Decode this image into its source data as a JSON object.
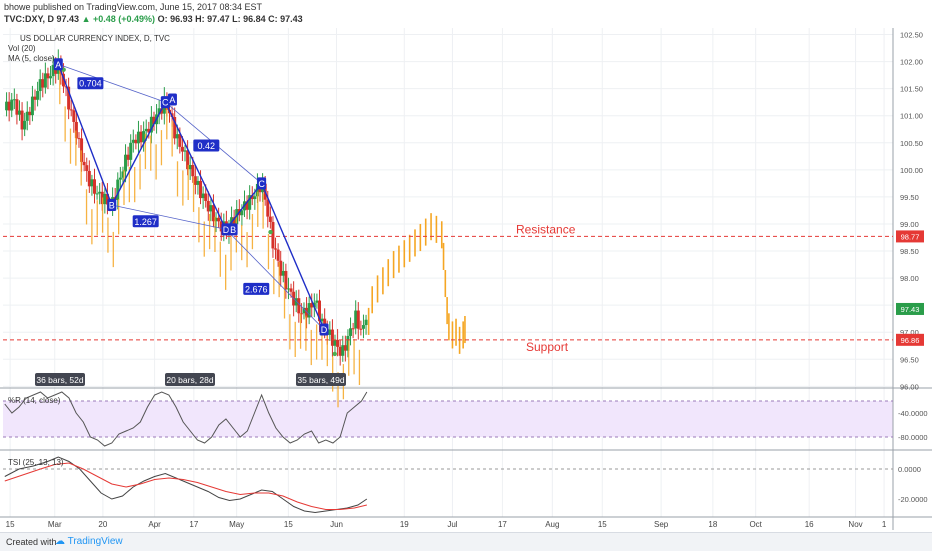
{
  "header": {
    "line1": "bhowe published on TradingView.com, June 15, 2017 08:34 EST",
    "symbol": "TVC:DXY, D",
    "price": "97.43",
    "change": "+0.48 (+0.49%)",
    "ohlc": "O: 96.93 H: 97.47 L: 96.84 C: 97.43"
  },
  "legend": {
    "title": "US DOLLAR CURRENCY INDEX, D, TVC",
    "vol": "Vol (20)",
    "ma": "MA (5, close)"
  },
  "colors": {
    "up": "#2a9d4a",
    "down": "#d6312a",
    "forecast": "#f5a623",
    "pattern": "#1f2ec7",
    "resistance": "#e53935",
    "support": "#e53935",
    "wr_band": "#f1e6fc",
    "tsi": "#444444",
    "tsi_signal": "#e53935",
    "wr_line": "#555555"
  },
  "levels": {
    "resistance": {
      "label": "Resistance",
      "value": 98.77,
      "badge": "98.77"
    },
    "support": {
      "label": "Support",
      "value": 96.86,
      "badge": "96.86"
    },
    "current": {
      "value": 97.43,
      "badge": "97.43"
    }
  },
  "bars_labels": [
    "36 bars, 52d",
    "20 bars, 28d",
    "35 bars, 49d"
  ],
  "pattern": {
    "points": [
      {
        "label": "A",
        "d": 30,
        "p": 101.95
      },
      {
        "label": "B",
        "d": 60,
        "p": 99.35
      },
      {
        "label": "C",
        "d": 90,
        "p": 101.25
      },
      {
        "label": "D",
        "d": 124,
        "p": 98.9
      },
      {
        "label": "C",
        "d": 144,
        "p": 99.75
      },
      {
        "label": "D",
        "d": 179,
        "p": 97.05
      }
    ],
    "extra_labels": [
      {
        "label": "A",
        "d": 94,
        "p": 101.3
      },
      {
        "label": "B",
        "d": 128,
        "p": 98.9
      }
    ],
    "ratios": [
      {
        "text": "0.704",
        "d": 48,
        "p": 101.6
      },
      {
        "text": "1.267",
        "d": 79,
        "p": 99.05
      },
      {
        "text": "0.42",
        "d": 113,
        "p": 100.45
      },
      {
        "text": "2.676",
        "d": 141,
        "p": 97.8
      }
    ]
  },
  "time_axis": [
    {
      "label": "15",
      "d": 3
    },
    {
      "label": "Mar",
      "d": 28
    },
    {
      "label": "20",
      "d": 55
    },
    {
      "label": "Apr",
      "d": 84
    },
    {
      "label": "17",
      "d": 106
    },
    {
      "label": "May",
      "d": 130
    },
    {
      "label": "15",
      "d": 159
    },
    {
      "label": "Jun",
      "d": 186
    },
    {
      "label": "19",
      "d": 224
    },
    {
      "label": "Jul",
      "d": 251
    },
    {
      "label": "17",
      "d": 279
    },
    {
      "label": "Aug",
      "d": 307
    },
    {
      "label": "15",
      "d": 335
    },
    {
      "label": "Sep",
      "d": 368
    },
    {
      "label": "18",
      "d": 397
    },
    {
      "label": "Oct",
      "d": 421
    },
    {
      "label": "16",
      "d": 451
    },
    {
      "label": "Nov",
      "d": 477
    },
    {
      "label": "1",
      "d": 493
    }
  ],
  "chart_data": [
    {
      "type": "candlestick",
      "title": "US DOLLAR CURRENCY INDEX, D, TVC",
      "ylim": [
        95.97,
        102.62
      ],
      "yticks": [
        102.5,
        102.0,
        101.5,
        101.0,
        100.5,
        100.0,
        99.5,
        99.0,
        98.5,
        98.0,
        97.5,
        97.0,
        96.5,
        96.0
      ],
      "ytick_labels": [
        "102.50",
        "102.00",
        "101.50",
        "101.00",
        "100.50",
        "100.00",
        "99.50",
        "99.00",
        "98.50",
        "98.00",
        "97.50",
        "97.00",
        "96.50",
        "96.00"
      ],
      "x_unit": "days since Feb 12, 2017 (chart start)",
      "close_path": [
        [
          0,
          101.1
        ],
        [
          5,
          101.3
        ],
        [
          10,
          100.8
        ],
        [
          15,
          101.2
        ],
        [
          20,
          101.6
        ],
        [
          25,
          101.75
        ],
        [
          30,
          101.95
        ],
        [
          33,
          101.6
        ],
        [
          36,
          101.2
        ],
        [
          40,
          100.7
        ],
        [
          44,
          100.1
        ],
        [
          48,
          99.75
        ],
        [
          52,
          99.55
        ],
        [
          56,
          99.45
        ],
        [
          60,
          99.35
        ],
        [
          64,
          99.8
        ],
        [
          68,
          100.2
        ],
        [
          72,
          100.55
        ],
        [
          76,
          100.6
        ],
        [
          80,
          100.75
        ],
        [
          84,
          100.95
        ],
        [
          88,
          101.15
        ],
        [
          90,
          101.25
        ],
        [
          93,
          101.0
        ],
        [
          96,
          100.6
        ],
        [
          100,
          100.35
        ],
        [
          104,
          100.0
        ],
        [
          108,
          99.7
        ],
        [
          112,
          99.45
        ],
        [
          116,
          99.2
        ],
        [
          120,
          99.0
        ],
        [
          124,
          98.9
        ],
        [
          127,
          99.05
        ],
        [
          131,
          99.2
        ],
        [
          135,
          99.35
        ],
        [
          139,
          99.5
        ],
        [
          144,
          99.75
        ],
        [
          147,
          99.3
        ],
        [
          150,
          98.7
        ],
        [
          154,
          98.2
        ],
        [
          158,
          97.85
        ],
        [
          162,
          97.6
        ],
        [
          166,
          97.35
        ],
        [
          170,
          97.4
        ],
        [
          174,
          97.6
        ],
        [
          178,
          97.15
        ],
        [
          182,
          96.95
        ],
        [
          186,
          96.75
        ],
        [
          189,
          96.6
        ],
        [
          192,
          96.85
        ],
        [
          195,
          97.15
        ],
        [
          197,
          97.3
        ],
        [
          199,
          97.05
        ],
        [
          201,
          97.05
        ],
        [
          203,
          97.43
        ]
      ],
      "forecast": [
        [
          204,
          97.2
        ],
        [
          206,
          97.6
        ],
        [
          209,
          97.8
        ],
        [
          212,
          97.95
        ],
        [
          215,
          98.1
        ],
        [
          218,
          98.25
        ],
        [
          221,
          98.35
        ],
        [
          224,
          98.45
        ],
        [
          227,
          98.55
        ],
        [
          230,
          98.65
        ],
        [
          233,
          98.75
        ],
        [
          236,
          98.85
        ],
        [
          239,
          98.95
        ],
        [
          242,
          98.9
        ],
        [
          245,
          98.8
        ],
        [
          246,
          98.4
        ],
        [
          247,
          97.9
        ],
        [
          248,
          97.4
        ],
        [
          249,
          97.1
        ],
        [
          251,
          96.95
        ],
        [
          253,
          97.0
        ],
        [
          255,
          96.85
        ],
        [
          257,
          96.95
        ],
        [
          258,
          97.05
        ]
      ],
      "ma_dots": [
        [
          33,
          101.85
        ],
        [
          149,
          98.85
        ],
        [
          185,
          96.6
        ]
      ]
    },
    {
      "type": "line",
      "title": "%R (14, close)",
      "ylim": [
        -100,
        0
      ],
      "yticks": [
        -40,
        -80
      ],
      "ytick_labels": [
        "-40.0000",
        "-80.0000"
      ],
      "band": [
        -20,
        -80
      ],
      "values": [
        [
          0,
          -25
        ],
        [
          4,
          -40
        ],
        [
          8,
          -30
        ],
        [
          12,
          -15
        ],
        [
          16,
          -10
        ],
        [
          20,
          -5
        ],
        [
          24,
          -15
        ],
        [
          28,
          -10
        ],
        [
          32,
          -5
        ],
        [
          36,
          -15
        ],
        [
          40,
          -40
        ],
        [
          44,
          -55
        ],
        [
          48,
          -80
        ],
        [
          52,
          -85
        ],
        [
          56,
          -95
        ],
        [
          60,
          -90
        ],
        [
          64,
          -75
        ],
        [
          68,
          -70
        ],
        [
          72,
          -65
        ],
        [
          76,
          -55
        ],
        [
          80,
          -30
        ],
        [
          84,
          -10
        ],
        [
          88,
          -5
        ],
        [
          92,
          -10
        ],
        [
          96,
          -30
        ],
        [
          100,
          -55
        ],
        [
          104,
          -70
        ],
        [
          108,
          -85
        ],
        [
          112,
          -90
        ],
        [
          116,
          -80
        ],
        [
          120,
          -60
        ],
        [
          124,
          -50
        ],
        [
          128,
          -65
        ],
        [
          132,
          -80
        ],
        [
          136,
          -70
        ],
        [
          140,
          -40
        ],
        [
          144,
          -10
        ],
        [
          148,
          -40
        ],
        [
          152,
          -65
        ],
        [
          156,
          -80
        ],
        [
          160,
          -90
        ],
        [
          164,
          -85
        ],
        [
          168,
          -75
        ],
        [
          172,
          -70
        ],
        [
          176,
          -90
        ],
        [
          180,
          -85
        ],
        [
          184,
          -90
        ],
        [
          188,
          -80
        ],
        [
          192,
          -40
        ],
        [
          196,
          -30
        ],
        [
          200,
          -20
        ],
        [
          203,
          -5
        ]
      ]
    },
    {
      "type": "line",
      "title": "TSI (25, 13, 13)",
      "ylim": [
        -32,
        12
      ],
      "yticks": [
        0,
        -20
      ],
      "ytick_labels": [
        "0.0000",
        "-20.0000"
      ],
      "series": [
        {
          "name": "TSI",
          "values": [
            [
              0,
              -5
            ],
            [
              8,
              0
            ],
            [
              16,
              2
            ],
            [
              24,
              5
            ],
            [
              30,
              8
            ],
            [
              36,
              5
            ],
            [
              42,
              0
            ],
            [
              48,
              -8
            ],
            [
              54,
              -16
            ],
            [
              60,
              -20
            ],
            [
              66,
              -18
            ],
            [
              72,
              -12
            ],
            [
              78,
              -8
            ],
            [
              84,
              -5
            ],
            [
              90,
              -3
            ],
            [
              96,
              -6
            ],
            [
              102,
              -9
            ],
            [
              108,
              -12
            ],
            [
              114,
              -15
            ],
            [
              120,
              -19
            ],
            [
              126,
              -21
            ],
            [
              132,
              -20
            ],
            [
              138,
              -17
            ],
            [
              144,
              -14
            ],
            [
              150,
              -15
            ],
            [
              156,
              -20
            ],
            [
              162,
              -25
            ],
            [
              168,
              -28
            ],
            [
              174,
              -29
            ],
            [
              180,
              -28
            ],
            [
              186,
              -27
            ],
            [
              192,
              -26
            ],
            [
              198,
              -24
            ],
            [
              203,
              -20
            ]
          ]
        },
        {
          "name": "Signal",
          "values": [
            [
              0,
              -8
            ],
            [
              10,
              -4
            ],
            [
              20,
              0
            ],
            [
              28,
              3
            ],
            [
              36,
              4
            ],
            [
              44,
              0
            ],
            [
              52,
              -5
            ],
            [
              60,
              -10
            ],
            [
              68,
              -12
            ],
            [
              76,
              -10
            ],
            [
              84,
              -7
            ],
            [
              92,
              -6
            ],
            [
              100,
              -7
            ],
            [
              108,
              -9
            ],
            [
              116,
              -12
            ],
            [
              124,
              -15
            ],
            [
              132,
              -17
            ],
            [
              140,
              -16
            ],
            [
              148,
              -16
            ],
            [
              156,
              -18
            ],
            [
              164,
              -22
            ],
            [
              172,
              -25
            ],
            [
              180,
              -27
            ],
            [
              188,
              -27
            ],
            [
              196,
              -26
            ],
            [
              203,
              -24
            ]
          ]
        }
      ]
    }
  ]
}
